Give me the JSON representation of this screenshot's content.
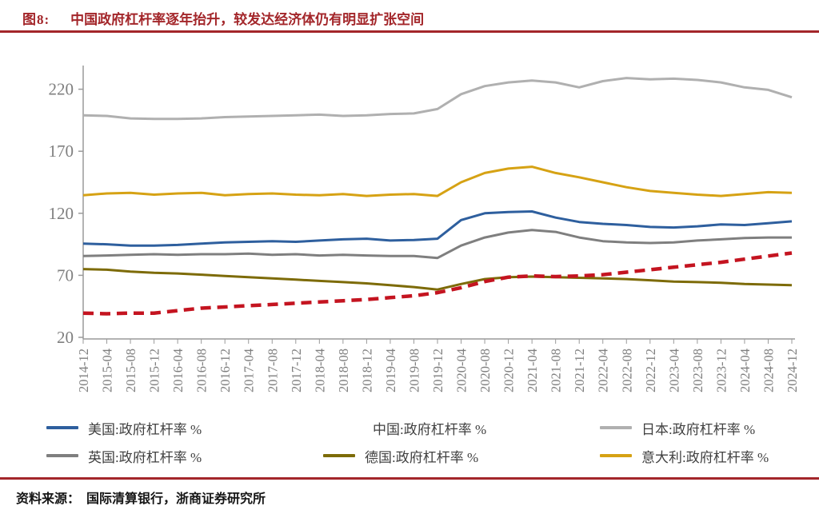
{
  "header": {
    "figure_label": "图8:",
    "title": "中国政府杠杆率逐年抬升，较发达经济体仍有明显扩张空间"
  },
  "source": {
    "label": "资料来源：",
    "text": "国际清算银行，浙商证券研究所"
  },
  "colors": {
    "accent_red": "#a3262a",
    "axis_gray": "#9a9a9a",
    "tick_text_gray": "#7f7f7f",
    "legend_text": "#404040"
  },
  "chart_data": {
    "type": "line",
    "title": "",
    "xlabel": "",
    "ylabel": "",
    "grid": false,
    "legend_position": "bottom",
    "ylim": [
      20,
      235
    ],
    "yticks": [
      20,
      70,
      120,
      170,
      220
    ],
    "x": [
      "2014-12",
      "2015-04",
      "2015-08",
      "2015-12",
      "2016-04",
      "2016-08",
      "2016-12",
      "2017-04",
      "2017-08",
      "2017-12",
      "2018-04",
      "2018-08",
      "2018-12",
      "2019-04",
      "2019-08",
      "2019-12",
      "2020-04",
      "2020-08",
      "2020-12",
      "2021-04",
      "2021-08",
      "2021-12",
      "2022-04",
      "2022-08",
      "2022-12",
      "2023-04",
      "2023-08",
      "2023-12",
      "2024-04",
      "2024-08",
      "2024-12"
    ],
    "series": [
      {
        "name": "美国:政府杠杆率 %",
        "color": "#2e5f9e",
        "dash": null,
        "width": 3,
        "values": [
          95.5,
          95,
          94,
          94,
          94.5,
          95.5,
          96.5,
          97,
          97.5,
          97,
          98,
          99,
          99.5,
          98,
          98.5,
          99.5,
          114.5,
          120,
          121,
          121.5,
          116.5,
          113,
          111.5,
          110.5,
          109,
          108.5,
          109.5,
          111,
          110.5,
          112,
          113.5
        ]
      },
      {
        "name": "英国:政府杠杆率 %",
        "color": "#7f7f7f",
        "dash": null,
        "width": 3,
        "values": [
          85.5,
          86,
          86.5,
          87,
          86.5,
          87,
          87,
          87.5,
          86.5,
          87,
          86,
          86.5,
          86,
          85.5,
          85.5,
          84,
          94,
          100.5,
          104.5,
          106.5,
          105,
          100.5,
          97.5,
          96.5,
          96,
          96.5,
          98,
          99,
          100,
          100.5,
          100.5
        ]
      },
      {
        "name": "日本:政府杠杆率 %",
        "color": "#b0b0b0",
        "dash": null,
        "width": 3,
        "values": [
          199,
          198.5,
          196.5,
          196,
          196,
          196.5,
          197.5,
          198,
          198.5,
          199,
          199.5,
          198.5,
          199,
          200,
          200.5,
          204,
          216,
          222.5,
          225.5,
          227,
          225.5,
          221.5,
          226.5,
          229,
          228,
          228.5,
          227.5,
          225.5,
          221.5,
          219.5,
          213.5
        ]
      },
      {
        "name": "德国:政府杠杆率 %",
        "color": "#7d6b08",
        "dash": null,
        "width": 3,
        "values": [
          75,
          74.5,
          73,
          72,
          71.5,
          70.5,
          69.5,
          68.5,
          67.5,
          66.5,
          65.5,
          64.5,
          63.5,
          62,
          60.5,
          58.5,
          63,
          67,
          68.5,
          69,
          68.5,
          68,
          67.5,
          67,
          66,
          65,
          64.5,
          64,
          63,
          62.5,
          62
        ]
      },
      {
        "name": "意大利:政府杠杆率 %",
        "color": "#d6a214",
        "dash": null,
        "width": 3,
        "values": [
          134.5,
          136,
          136.5,
          135,
          136,
          136.5,
          134.5,
          135.5,
          136,
          135,
          134.5,
          135.5,
          134,
          135,
          135.5,
          134,
          145,
          152.5,
          156,
          157.5,
          152.5,
          149,
          145,
          141,
          138,
          136.5,
          135,
          134,
          135.5,
          137,
          136.5
        ]
      },
      {
        "name": "中国:政府杠杆率 %",
        "color": "#c41420",
        "dash": "13 8",
        "width": 4.5,
        "values": [
          39.5,
          39,
          39.5,
          39.5,
          41.5,
          43.5,
          44.5,
          45.5,
          46.5,
          47.5,
          48.5,
          49.5,
          50.5,
          52,
          53.5,
          56,
          60,
          65,
          68.5,
          69.5,
          69,
          69.5,
          70.5,
          72.5,
          74.5,
          76.5,
          78.5,
          80.5,
          83,
          85.5,
          88
        ]
      }
    ],
    "legend_order": [
      0,
      5,
      2,
      1,
      3,
      4
    ]
  }
}
